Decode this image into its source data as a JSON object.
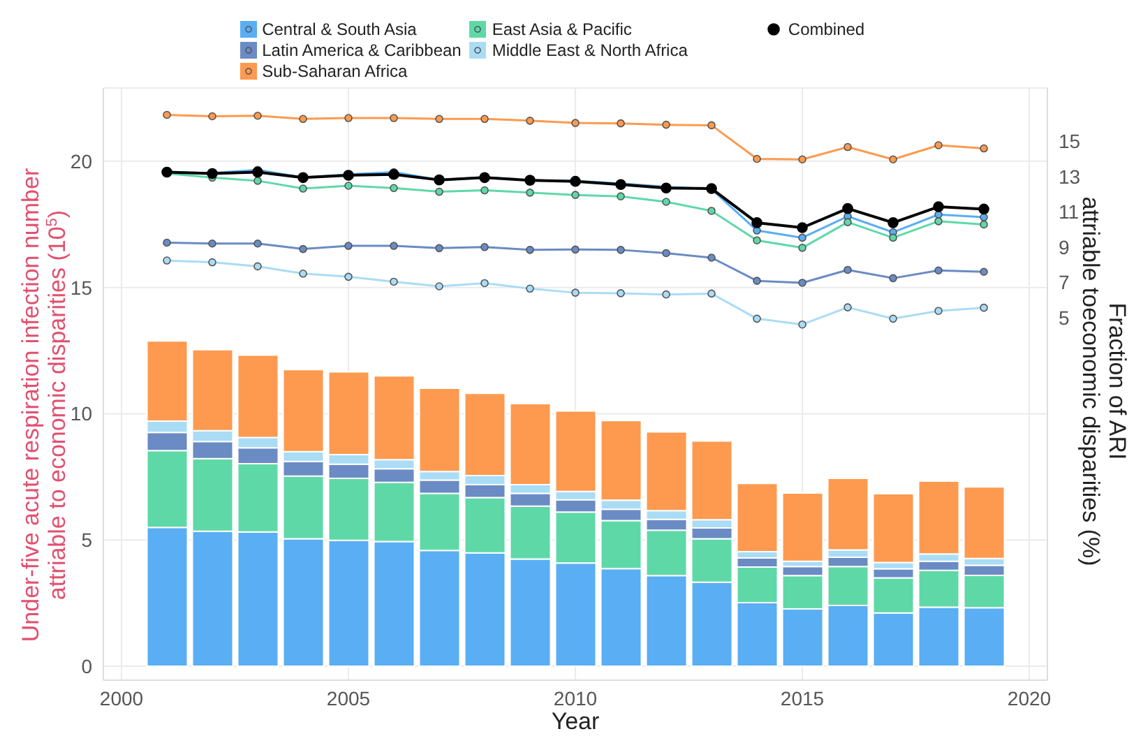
{
  "chart_data": {
    "type": "bar",
    "stacked": true,
    "xlabel": "Year",
    "ylabel": "Under-five acute respiration infection number\nattriable to economic disparities (10$^{5}$)",
    "y2label": "Fraction of ARI\nattriable toeconomic disparities (%)",
    "x": [
      2001,
      2002,
      2003,
      2004,
      2005,
      2006,
      2007,
      2008,
      2009,
      2010,
      2011,
      2012,
      2013,
      2014,
      2015,
      2016,
      2017,
      2018,
      2019
    ],
    "xlim": [
      1999.6,
      2020.4
    ],
    "xticks": [
      2000,
      2005,
      2010,
      2015,
      2020
    ],
    "ylim": [
      -0.55,
      22.9
    ],
    "yticks": [
      0,
      5,
      10,
      15,
      20
    ],
    "y2lim": [
      -15.5,
      18.0
    ],
    "y2ticks": [
      5,
      7,
      9,
      11,
      13,
      15
    ],
    "grid": true,
    "legend": "top",
    "marker": "circle",
    "series": [
      {
        "name": "Central & South Asia",
        "color": "#5aaef3",
        "values": [
          5.5,
          5.35,
          5.32,
          5.05,
          4.99,
          4.94,
          4.59,
          4.49,
          4.25,
          4.09,
          3.87,
          3.59,
          3.33,
          2.52,
          2.27,
          2.41,
          2.11,
          2.34,
          2.32
        ]
      },
      {
        "name": "East Asia & Pacific",
        "color": "#5fd8a8",
        "values": [
          3.04,
          2.87,
          2.7,
          2.48,
          2.45,
          2.34,
          2.26,
          2.19,
          2.09,
          2.02,
          1.9,
          1.8,
          1.72,
          1.41,
          1.32,
          1.54,
          1.39,
          1.46,
          1.28
        ]
      },
      {
        "name": "Latin America & Caribbean",
        "color": "#6a8bc4",
        "values": [
          0.72,
          0.68,
          0.63,
          0.58,
          0.56,
          0.54,
          0.52,
          0.51,
          0.51,
          0.48,
          0.45,
          0.43,
          0.43,
          0.36,
          0.36,
          0.37,
          0.36,
          0.36,
          0.4
        ]
      },
      {
        "name": "Middle East & North Africa",
        "color": "#aadcf5",
        "values": [
          0.45,
          0.43,
          0.41,
          0.39,
          0.38,
          0.36,
          0.34,
          0.36,
          0.34,
          0.33,
          0.36,
          0.34,
          0.32,
          0.25,
          0.21,
          0.29,
          0.25,
          0.29,
          0.27
        ]
      },
      {
        "name": "Sub-Saharan Africa",
        "color": "#fd9a4f",
        "values": [
          3.17,
          3.21,
          3.26,
          3.25,
          3.28,
          3.32,
          3.3,
          3.26,
          3.21,
          3.19,
          3.15,
          3.12,
          3.12,
          2.7,
          2.7,
          2.83,
          2.72,
          2.88,
          2.83
        ]
      },
      {
        "type": "line",
        "axis": "y2",
        "color": "#fd9a4f",
        "values": [
          16.48,
          16.4,
          16.43,
          16.25,
          16.3,
          16.3,
          16.25,
          16.25,
          16.15,
          16.02,
          16.0,
          15.92,
          15.89,
          13.99,
          13.96,
          14.66,
          13.96,
          14.76,
          14.58
        ]
      },
      {
        "type": "line",
        "axis": "y2",
        "color": "#5aaef3",
        "values": [
          13.24,
          13.19,
          13.37,
          12.93,
          13.11,
          13.24,
          12.8,
          12.95,
          12.78,
          12.75,
          12.6,
          12.41,
          12.28,
          9.94,
          9.53,
          10.74,
          9.84,
          10.84,
          10.69
        ]
      },
      {
        "type": "line",
        "axis": "y2",
        "color": "#5fd8a8",
        "values": [
          13.16,
          12.93,
          12.75,
          12.31,
          12.47,
          12.34,
          12.13,
          12.21,
          12.08,
          11.95,
          11.87,
          11.56,
          11.05,
          9.38,
          8.96,
          10.41,
          9.53,
          10.46,
          10.28
        ]
      },
      {
        "type": "line",
        "axis": "y2",
        "color": "#6a8bc4",
        "values": [
          9.25,
          9.2,
          9.2,
          8.89,
          9.07,
          9.07,
          8.94,
          9.0,
          8.84,
          8.86,
          8.84,
          8.66,
          8.4,
          7.09,
          6.98,
          7.71,
          7.24,
          7.68,
          7.6
        ]
      },
      {
        "type": "line",
        "axis": "y2",
        "color": "#aadcf5",
        "values": [
          8.24,
          8.14,
          7.91,
          7.5,
          7.32,
          7.04,
          6.78,
          6.96,
          6.65,
          6.42,
          6.39,
          6.32,
          6.37,
          4.95,
          4.62,
          5.59,
          4.95,
          5.39,
          5.57
        ]
      },
      {
        "name": "Combined",
        "type": "line",
        "axis": "y2",
        "color": "#000000",
        "values": [
          13.24,
          13.16,
          13.24,
          12.93,
          13.06,
          13.11,
          12.8,
          12.93,
          12.78,
          12.72,
          12.54,
          12.34,
          12.31,
          10.38,
          10.1,
          11.18,
          10.38,
          11.28,
          11.15
        ]
      }
    ]
  }
}
